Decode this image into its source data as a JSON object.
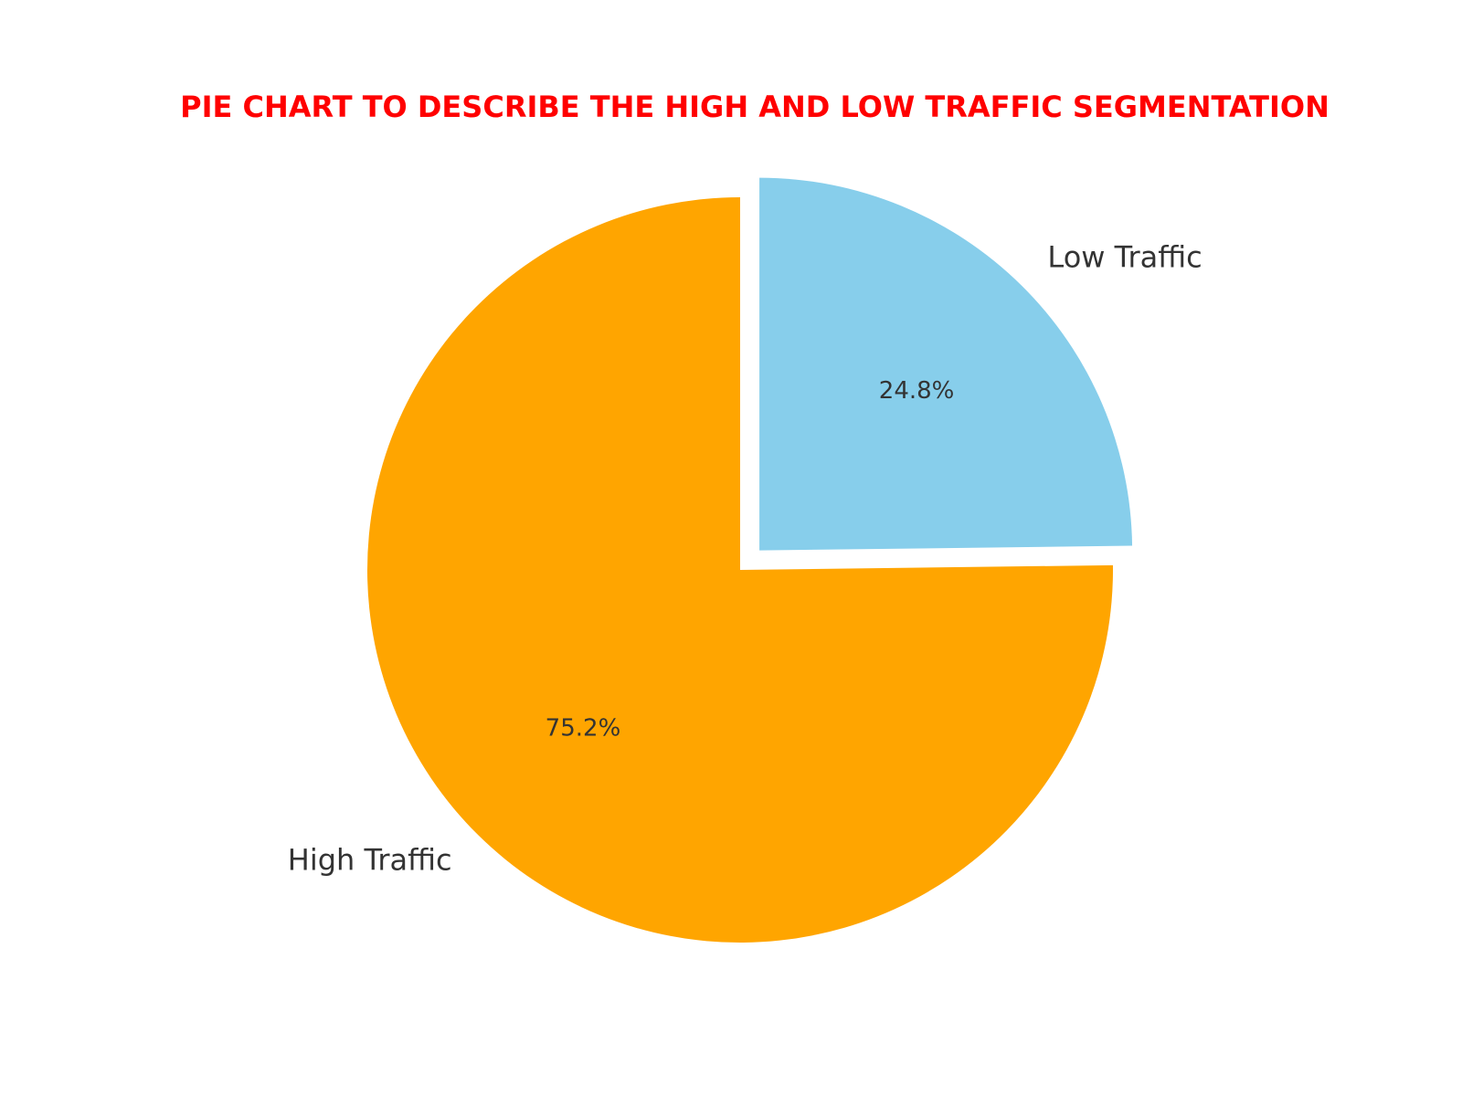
{
  "chart_data": {
    "type": "pie",
    "title": "PIE CHART TO DESCRIBE THE HIGH AND LOW TRAFFIC SEGMENTATION",
    "title_color": "#ff0000",
    "slices": [
      {
        "label": "Low Traffic",
        "value": 24.8,
        "pct_label": "24.8%",
        "color": "#87ceeb",
        "exploded": true
      },
      {
        "label": "High Traffic",
        "value": 75.2,
        "pct_label": "75.2%",
        "color": "#ffa500",
        "exploded": false
      }
    ],
    "start_angle": "12 o'clock",
    "direction": "clockwise",
    "legend": "none"
  }
}
